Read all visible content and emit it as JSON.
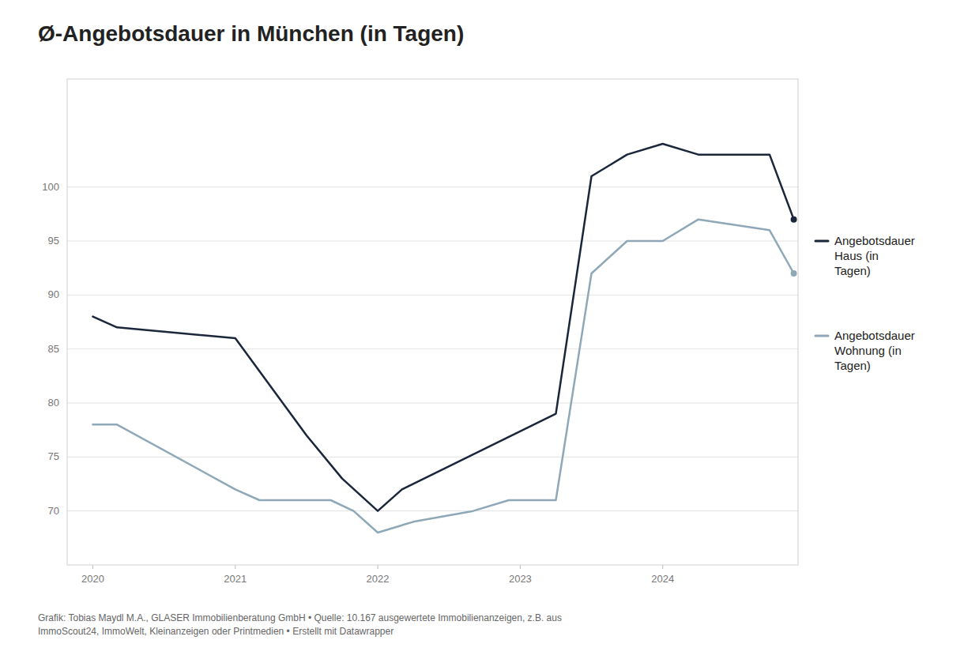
{
  "chart_data": {
    "type": "line",
    "title": "Ø-Angebotsdauer in München (in Tagen)",
    "footnote": "Grafik: Tobias Maydl M.A., GLASER Immobilienberatung GmbH • Quelle: 10.167 ausgewertete Immobilienanzeigen, z.B. aus\nImmoScout24, ImmoWelt, Kleinanzeigen oder Printmedien • Erstellt mit Datawrapper",
    "series": [
      {
        "name": "Angebotsdauer\nHaus (in\nTagen)",
        "color": "#1a2639",
        "x": [
          2020.0,
          2020.17,
          2021.0,
          2021.5,
          2021.75,
          2022.0,
          2022.17,
          2023.25,
          2023.5,
          2023.75,
          2024.0,
          2024.25,
          2024.75,
          2024.92
        ],
        "values": [
          88,
          87,
          86,
          77,
          73,
          70,
          72,
          79,
          101,
          103,
          104,
          103,
          103,
          97
        ]
      },
      {
        "name": "Angebotsdauer\nWohnung (in\nTagen)",
        "color": "#8fa8b8",
        "x": [
          2020.0,
          2020.17,
          2021.0,
          2021.17,
          2021.67,
          2021.83,
          2022.0,
          2022.25,
          2022.67,
          2022.92,
          2023.25,
          2023.5,
          2023.75,
          2024.0,
          2024.25,
          2024.75,
          2024.92
        ],
        "values": [
          78,
          78,
          72,
          71,
          71,
          70,
          68,
          69,
          70,
          71,
          71,
          92,
          95,
          95,
          97,
          96,
          92
        ]
      }
    ],
    "xlim": [
      2019.82,
      2024.95
    ],
    "xticks": [
      2020,
      2021,
      2022,
      2023,
      2024
    ],
    "ylim": [
      65,
      110
    ],
    "yticks": [
      70,
      75,
      80,
      85,
      90,
      95,
      100
    ],
    "grid": true,
    "legend": "right"
  }
}
